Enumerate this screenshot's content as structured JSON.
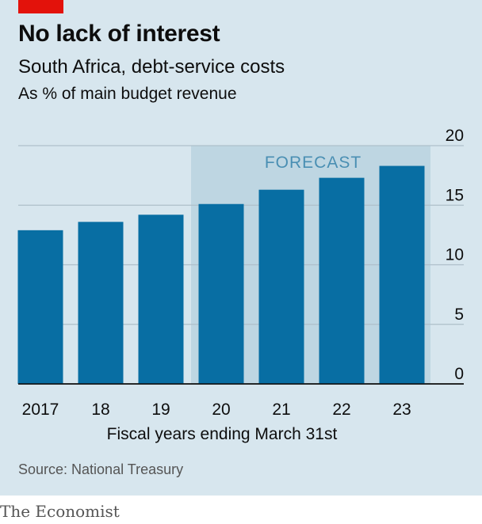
{
  "brand_color": "#e3120b",
  "background_color": "#d7e6ee",
  "bar_color": "#086ea3",
  "forecast_shade_color": "#bed6e2",
  "header": {
    "title": "No lack of interest",
    "subtitle": "South Africa, debt-service costs",
    "unit": "As % of main budget revenue"
  },
  "footer": {
    "source": "Source: National Treasury",
    "brand": "The Economist"
  },
  "chart_data": {
    "type": "bar",
    "title": "No lack of interest",
    "subtitle": "South Africa, debt-service costs",
    "ylabel": "As % of main budget revenue",
    "xlabel": "Fiscal years ending March 31st",
    "categories": [
      "2017",
      "18",
      "19",
      "20",
      "21",
      "22",
      "23"
    ],
    "values": [
      12.9,
      13.6,
      14.2,
      15.1,
      16.3,
      17.3,
      18.3
    ],
    "ylim": [
      0,
      20
    ],
    "yticks": [
      0,
      5,
      10,
      15,
      20
    ],
    "y_axis_side": "right",
    "grid": true,
    "forecast_label": "FORECAST",
    "forecast_from_category": "20",
    "forecast_to_category": "23"
  }
}
